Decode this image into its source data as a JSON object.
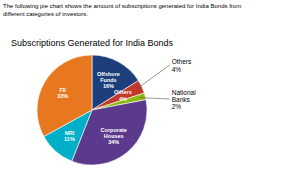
{
  "chart_data": {
    "type": "pie",
    "title": "Subscriptions Generated for India Bonds",
    "subtitle": "The following pie chart shows the amount of subscriptions generated for India Bonds from\ndifferent categories of investors.",
    "values": [
      16,
      4,
      2,
      34,
      11,
      33
    ],
    "value_labels": [
      "Offshore\nFunds\n16%",
      "Others\n4%",
      null,
      "Corporate\nHouses\n34%",
      "NRI\n11%",
      "FII\n33%"
    ],
    "colors": [
      "#1c3f7c",
      "#c0392b",
      "#8db810",
      "#5b3a8e",
      "#00aec8",
      "#e87820"
    ],
    "data_labels": true,
    "annotations": [
      {
        "text": "Others\n4%",
        "value": 4
      },
      {
        "text": "National\nBanks\n2%",
        "value": 2
      }
    ]
  }
}
